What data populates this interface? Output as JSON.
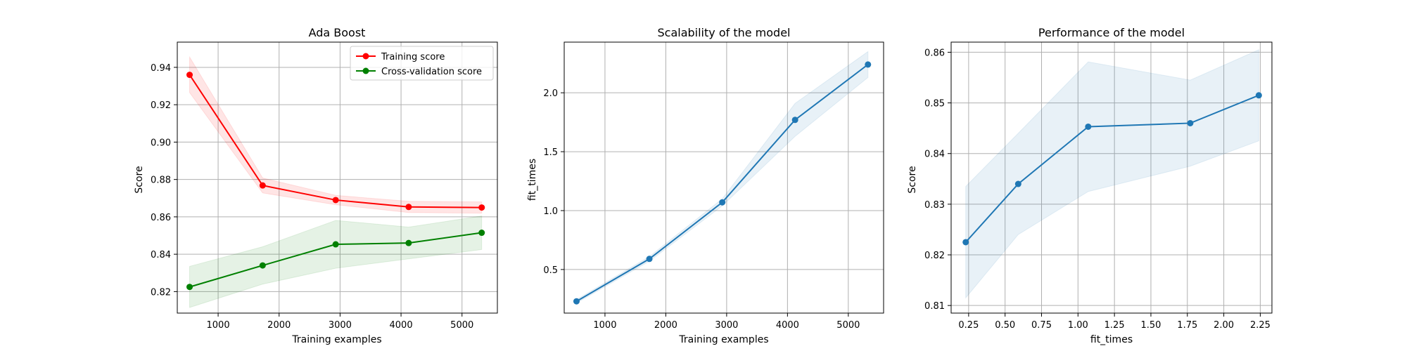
{
  "colors": {
    "training": "#ff0000",
    "cv": "#008000",
    "fit": "#1f77b4",
    "grid": "#b0b0b0"
  },
  "chart_data": [
    {
      "type": "line",
      "title": "Ada Boost",
      "xlabel": "Training examples",
      "ylabel": "Score",
      "xlim": [
        330,
        5580
      ],
      "ylim": [
        0.8085,
        0.9535
      ],
      "xticks": [
        1000,
        2000,
        3000,
        4000,
        5000
      ],
      "yticks": [
        0.82,
        0.84,
        0.86,
        0.88,
        0.9,
        0.92,
        0.94
      ],
      "ytick_labels": [
        "0.82",
        "0.84",
        "0.86",
        "0.88",
        "0.90",
        "0.92",
        "0.94"
      ],
      "grid": true,
      "legend": "top-right",
      "x": [
        532,
        1730,
        2928,
        4125,
        5323
      ],
      "series": [
        {
          "name": "Training score",
          "color_key": "training",
          "values": [
            0.936,
            0.8768,
            0.869,
            0.8653,
            0.865
          ],
          "lower": [
            0.9265,
            0.8728,
            0.8665,
            0.8623,
            0.862
          ],
          "upper": [
            0.9455,
            0.8808,
            0.8715,
            0.8683,
            0.868
          ]
        },
        {
          "name": "Cross-validation score",
          "color_key": "cv",
          "values": [
            0.8225,
            0.834,
            0.8453,
            0.846,
            0.8515
          ],
          "lower": [
            0.8115,
            0.824,
            0.8325,
            0.8375,
            0.8425
          ],
          "upper": [
            0.8335,
            0.844,
            0.8581,
            0.8545,
            0.8605
          ]
        }
      ]
    },
    {
      "type": "line",
      "title": "Scalability of the model",
      "xlabel": "Training examples",
      "ylabel": "fit_times",
      "xlim": [
        330,
        5580
      ],
      "ylim": [
        0.13,
        2.43
      ],
      "xticks": [
        1000,
        2000,
        3000,
        4000,
        5000
      ],
      "yticks": [
        0.5,
        1.0,
        1.5,
        2.0
      ],
      "ytick_labels": [
        "0.5",
        "1.0",
        "1.5",
        "2.0"
      ],
      "grid": true,
      "x": [
        532,
        1730,
        2928,
        4125,
        5323
      ],
      "series": [
        {
          "name": "",
          "color_key": "fit",
          "values": [
            0.23,
            0.59,
            1.07,
            1.77,
            2.24
          ],
          "lower": [
            0.215,
            0.57,
            1.04,
            1.63,
            2.13
          ],
          "upper": [
            0.245,
            0.61,
            1.1,
            1.91,
            2.35
          ]
        }
      ]
    },
    {
      "type": "line",
      "title": "Performance of the model",
      "xlabel": "fit_times",
      "ylabel": "Score",
      "xlim": [
        0.13,
        2.33
      ],
      "ylim": [
        0.8085,
        0.862
      ],
      "xticks": [
        0.25,
        0.5,
        0.75,
        1.0,
        1.25,
        1.5,
        1.75,
        2.0,
        2.25
      ],
      "xtick_labels": [
        "0.25",
        "0.50",
        "0.75",
        "1.00",
        "1.25",
        "1.50",
        "1.75",
        "2.00",
        "2.25"
      ],
      "yticks": [
        0.81,
        0.82,
        0.83,
        0.84,
        0.85,
        0.86
      ],
      "ytick_labels": [
        "0.81",
        "0.82",
        "0.83",
        "0.84",
        "0.85",
        "0.86"
      ],
      "grid": true,
      "x": [
        0.23,
        0.59,
        1.07,
        1.77,
        2.24
      ],
      "series": [
        {
          "name": "",
          "color_key": "fit",
          "values": [
            0.8225,
            0.834,
            0.8453,
            0.846,
            0.8515
          ],
          "lower": [
            0.8115,
            0.824,
            0.8325,
            0.8375,
            0.8425
          ],
          "upper": [
            0.8335,
            0.844,
            0.8581,
            0.8545,
            0.8605
          ]
        }
      ]
    }
  ]
}
